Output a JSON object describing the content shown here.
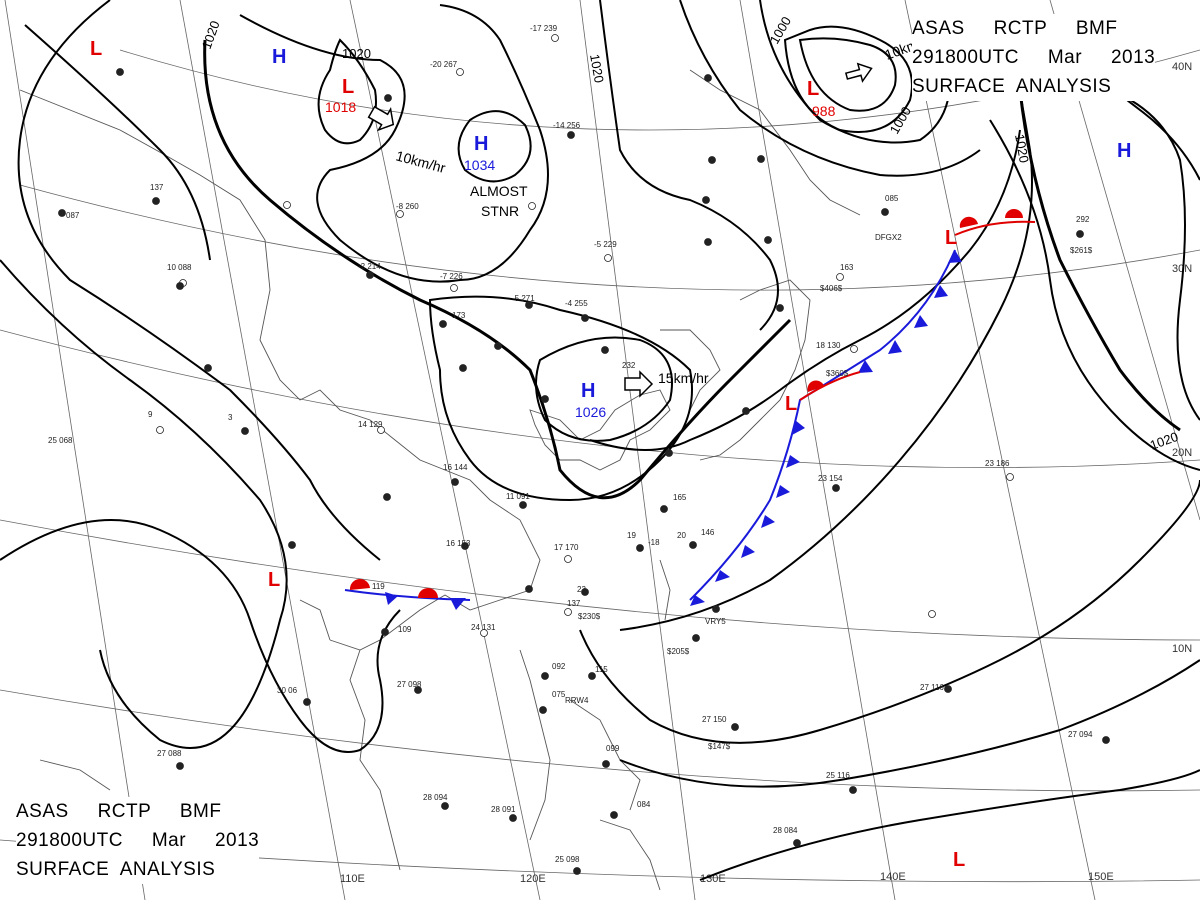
{
  "title": {
    "lines": [
      "ASAS     RCTP     BMF",
      "291800UTC     Mar     2013",
      "SURFACE  ANALYSIS"
    ]
  },
  "graticule": {
    "longitude_labels": [
      "110E",
      "120E",
      "130E",
      "140E",
      "150E"
    ],
    "latitude_labels": [
      "40N",
      "30N",
      "20N",
      "10N"
    ]
  },
  "isobar_labels": [
    "1020",
    "1020",
    "1020",
    "1000",
    "1000",
    "1020",
    "1020"
  ],
  "pressure_systems": [
    {
      "type": "L",
      "value": ""
    },
    {
      "type": "H",
      "value": ""
    },
    {
      "type": "L",
      "value": "1018"
    },
    {
      "type": "H",
      "value": "1034"
    },
    {
      "type": "L",
      "value": "988"
    },
    {
      "type": "H",
      "value": ""
    },
    {
      "type": "H",
      "value": "1026"
    },
    {
      "type": "L",
      "value": ""
    },
    {
      "type": "L",
      "value": ""
    },
    {
      "type": "L",
      "value": ""
    },
    {
      "type": "L",
      "value": ""
    }
  ],
  "motion_labels": [
    "10km/hr",
    "ALMOST",
    "STNR",
    "15km/hr",
    "10km/hr"
  ],
  "station_labels": [
    "-17 239",
    "-20 267",
    "-14 256",
    "-8 260",
    "-2 214",
    "-7 226",
    "-5 271",
    "-4 255",
    "-5 229",
    "173",
    "232",
    "16 144",
    "11 091",
    "16 153",
    "17 170",
    "19",
    "-18",
    "165",
    "146",
    "20",
    "24 131",
    "23",
    "137",
    "27 098",
    "30 06",
    "27 088",
    "28 094",
    "28 091",
    "25 098",
    "28 084",
    "25 116",
    "27 150",
    "27 116",
    "27 094",
    "23 186",
    "23 154",
    "18 130",
    "163",
    "085",
    "292",
    "14 129",
    "3",
    "9",
    "25 068",
    "10 088",
    "137",
    "087",
    "119",
    "109",
    "092",
    "115",
    "075",
    "099",
    "084",
    "$406$",
    "$360$",
    "$230$",
    "$205$",
    "$147$",
    "$261$",
    "DFGX2",
    "RRW4",
    "VRY5"
  ],
  "colors": {
    "isobar": "#000000",
    "graticule": "#555555",
    "coastline": "#444444",
    "cold_front": "#1a1adb",
    "warm_front": "#e00000",
    "high": "#1a1adb",
    "low": "#e00000"
  }
}
